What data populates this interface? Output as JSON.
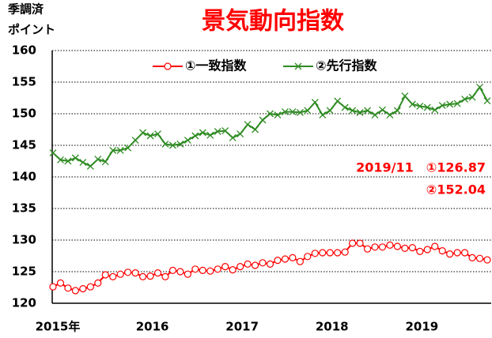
{
  "chart_data": {
    "type": "line",
    "title": "景気動向指数",
    "y_axis_label": [
      "季調済",
      "ポイント"
    ],
    "annotations": [
      "2019/11　①126.87",
      "②152.04"
    ],
    "categories": [
      "2015年",
      null,
      null,
      null,
      null,
      null,
      null,
      null,
      null,
      null,
      null,
      null,
      "2016",
      null,
      null,
      null,
      null,
      null,
      null,
      null,
      null,
      null,
      null,
      null,
      "2017",
      null,
      null,
      null,
      null,
      null,
      null,
      null,
      null,
      null,
      null,
      null,
      "2018",
      null,
      null,
      null,
      null,
      null,
      null,
      null,
      null,
      null,
      null,
      null,
      "2019",
      null,
      null,
      null,
      null,
      null,
      null,
      null,
      null,
      null,
      null
    ],
    "series": [
      {
        "name": "①一致指数",
        "color": "#ff0000",
        "marker": "circle",
        "values": [
          122.6,
          123.2,
          122.4,
          122.0,
          122.3,
          122.6,
          123.2,
          124.5,
          124.2,
          124.6,
          124.9,
          124.8,
          124.2,
          124.3,
          124.8,
          124.2,
          125.2,
          125.0,
          124.6,
          125.4,
          125.2,
          125.1,
          125.4,
          125.8,
          125.3,
          125.8,
          126.2,
          126.0,
          126.4,
          126.2,
          126.8,
          127.0,
          127.2,
          126.6,
          127.4,
          127.9,
          128.0,
          128.0,
          128.0,
          128.1,
          129.5,
          129.5,
          128.6,
          128.9,
          128.9,
          129.2,
          129.0,
          128.7,
          128.8,
          128.2,
          128.5,
          129.0,
          128.3,
          127.8,
          128.0,
          128.0,
          127.2,
          127.1,
          126.87
        ]
      },
      {
        "name": "②先行指数",
        "color": "#2e8b22",
        "marker": "x",
        "values": [
          143.8,
          142.7,
          142.5,
          143.0,
          142.3,
          141.7,
          142.8,
          142.4,
          144.2,
          144.2,
          144.6,
          145.8,
          147.0,
          146.5,
          146.8,
          145.2,
          145.0,
          145.2,
          145.8,
          146.5,
          147.0,
          146.6,
          147.2,
          147.3,
          146.2,
          146.8,
          148.3,
          147.5,
          149.0,
          150.0,
          149.8,
          150.3,
          150.3,
          150.2,
          150.5,
          151.8,
          149.8,
          150.5,
          152.0,
          151.0,
          150.5,
          150.2,
          150.5,
          149.8,
          150.6,
          149.8,
          150.5,
          152.8,
          151.5,
          151.2,
          151.0,
          150.6,
          151.3,
          151.5,
          151.6,
          152.3,
          152.6,
          154.2,
          152.04
        ]
      }
    ],
    "ylim": [
      120,
      160
    ],
    "yticks": [
      120,
      125,
      130,
      135,
      140,
      145,
      150,
      155,
      160
    ],
    "grid": true,
    "legend": "top"
  }
}
